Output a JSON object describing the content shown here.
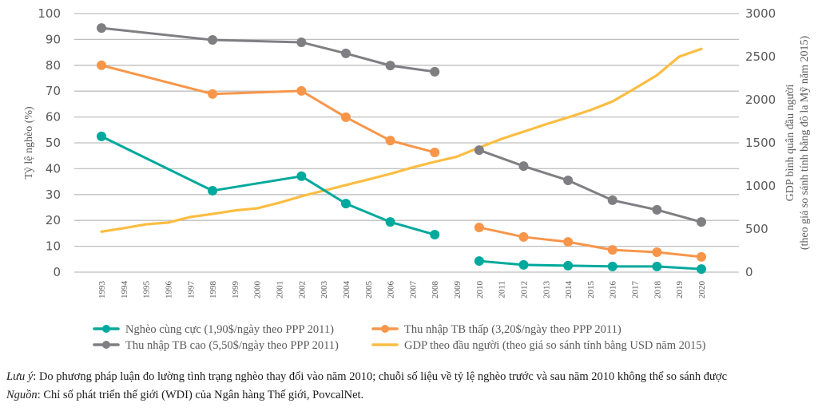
{
  "chart_data": {
    "type": "line",
    "title": "",
    "xlabel": "",
    "ylabel": "Tỷ lệ nghèo (%)",
    "y2label_line1": "GDP bình quân đầu người",
    "y2label_line2": "(theo giá so sánh tính bằng đô la Mỹ năm 2015)",
    "ylim": [
      0,
      100
    ],
    "y2lim": [
      0,
      3000
    ],
    "yticks": [
      0,
      10,
      20,
      30,
      40,
      50,
      60,
      70,
      80,
      90,
      100
    ],
    "y2ticks": [
      0,
      500,
      1000,
      1500,
      2000,
      2500,
      3000
    ],
    "grid": true,
    "legend_position": "bottom",
    "x": [
      "1993",
      "1994",
      "1995",
      "1996",
      "1997",
      "1998",
      "1999",
      "2000",
      "2001",
      "2002",
      "2003",
      "2004",
      "2005",
      "2006",
      "2007",
      "2008",
      "2009",
      "2010",
      "2011",
      "2012",
      "2013",
      "2014",
      "2015",
      "2016",
      "2017",
      "2018",
      "2019",
      "2020"
    ],
    "series": [
      {
        "name": "Nghèo cùng cực (1,90$/ngày theo PPP 2011)",
        "axis": "left",
        "color": "#00a99d",
        "markers": true,
        "segments": [
          {
            "x": [
              "1993",
              "1998",
              "2002",
              "2004",
              "2006",
              "2008"
            ],
            "values": [
              52.5,
              31.5,
              37.1,
              26.5,
              19.4,
              14.5
            ]
          },
          {
            "x": [
              "2010",
              "2012",
              "2014",
              "2016",
              "2018",
              "2020"
            ],
            "values": [
              4.3,
              2.8,
              2.5,
              2.2,
              2.2,
              1.2
            ]
          }
        ]
      },
      {
        "name": "Thu nhập TB thấp (3,20$/ngày theo PPP 2011)",
        "axis": "left",
        "color": "#f7964a",
        "markers": true,
        "segments": [
          {
            "x": [
              "1993",
              "1998",
              "2002",
              "2004",
              "2006",
              "2008"
            ],
            "values": [
              80.0,
              68.9,
              70.1,
              59.9,
              50.9,
              46.3
            ]
          },
          {
            "x": [
              "2010",
              "2012",
              "2014",
              "2016",
              "2018",
              "2020"
            ],
            "values": [
              17.3,
              13.6,
              11.7,
              8.6,
              7.7,
              5.9
            ]
          }
        ]
      },
      {
        "name": "Thu nhập TB cao (5,50$/ngày theo PPP 2011)",
        "axis": "left",
        "color": "#7f7f83",
        "markers": true,
        "segments": [
          {
            "x": [
              "1993",
              "1998",
              "2002",
              "2004",
              "2006",
              "2008"
            ],
            "values": [
              94.4,
              89.8,
              88.9,
              84.6,
              79.9,
              77.5
            ]
          },
          {
            "x": [
              "2010",
              "2012",
              "2014",
              "2016",
              "2018",
              "2020"
            ],
            "values": [
              47.2,
              41.0,
              35.5,
              27.8,
              24.1,
              19.4
            ]
          }
        ]
      },
      {
        "name": "GDP theo đầu người (theo giá so sánh tính bằng USD năm 2015)",
        "axis": "right",
        "color": "#fbbd42",
        "markers": false,
        "segments": [
          {
            "x": [
              "1993",
              "1994",
              "1995",
              "1996",
              "1997",
              "1998",
              "1999",
              "2000",
              "2001",
              "2002",
              "2003",
              "2004",
              "2005",
              "2006",
              "2007",
              "2008",
              "2009",
              "2010",
              "2011",
              "2012",
              "2013",
              "2014",
              "2015",
              "2016",
              "2017",
              "2018",
              "2019",
              "2020"
            ],
            "values": [
              470,
              510,
              555,
              575,
              640,
              675,
              715,
              740,
              805,
              880,
              945,
              1010,
              1075,
              1140,
              1215,
              1280,
              1340,
              1445,
              1545,
              1630,
              1715,
              1795,
              1880,
              1980,
              2130,
              2285,
              2500,
              2590
            ]
          }
        ]
      }
    ],
    "legend_order": [
      0,
      1,
      2,
      3
    ]
  },
  "notes": {
    "note_label": "Lưu ý",
    "note_text": ": Do phương pháp luận đo lường tình trạng nghèo thay đổi vào năm 2010; chuỗi số liệu về tỷ lệ nghèo trước và sau năm 2010 không thể so sánh được",
    "source_label": "Nguồn",
    "source_text": ": Chỉ số phát triển thế giới (WDI) của Ngân hàng Thế giới, PovcalNet."
  }
}
